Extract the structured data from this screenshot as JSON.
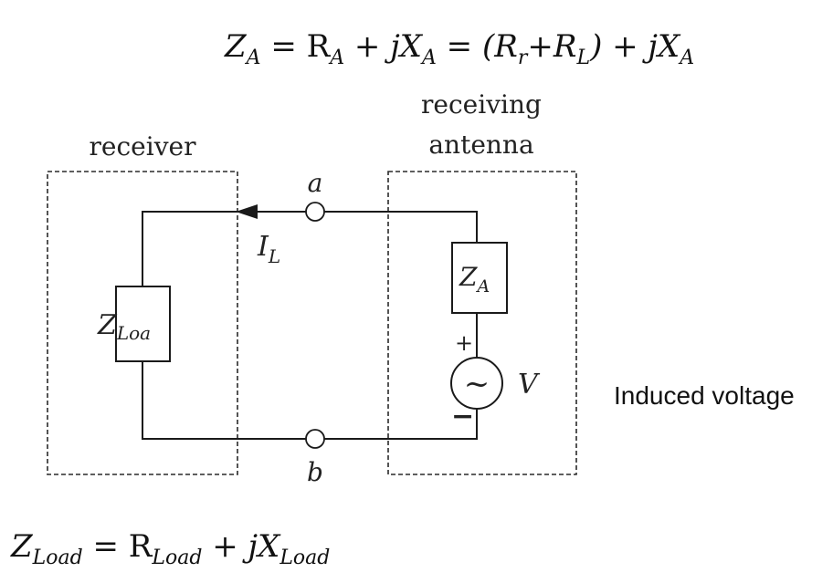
{
  "equations": {
    "antenna_impedance": {
      "parts": [
        "Z",
        "A",
        " = R",
        "A",
        " + jX",
        "A",
        " = (R",
        "r",
        "+R",
        "L",
        ") + jX",
        "A"
      ]
    },
    "load_impedance": {
      "parts": [
        "Z",
        "Load",
        " = R",
        "Load",
        " + jX",
        "Load"
      ]
    }
  },
  "labels": {
    "receiver": "receiver",
    "receiving_antenna_line1": "receiving",
    "receiving_antenna_line2": "antenna",
    "terminal_a": "a",
    "terminal_b": "b",
    "current": {
      "main": "I",
      "sub": "L"
    },
    "antenna_impedance": {
      "main": "Z",
      "sub": "A"
    },
    "load_impedance": {
      "main": "Z",
      "sub": "Loa"
    },
    "plus_sign": "+",
    "minus_sign": "−",
    "source_symbol": "~",
    "voltage": "V",
    "induced_voltage": "Induced voltage"
  }
}
